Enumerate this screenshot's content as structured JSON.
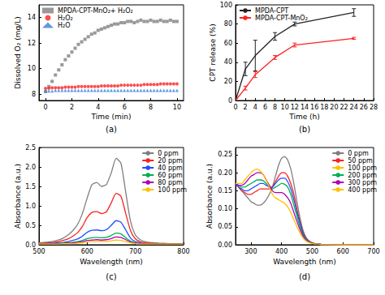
{
  "chart_data": [
    {
      "type": "scatter",
      "title": "(a)",
      "x_label": "Time (min)",
      "y_label": "Dissolved O₂ (mg/L)",
      "x": [
        0,
        0.25,
        0.5,
        0.75,
        1,
        1.25,
        1.5,
        1.75,
        2,
        2.25,
        2.5,
        2.75,
        3,
        3.25,
        3.5,
        3.75,
        4,
        4.25,
        4.5,
        4.75,
        5,
        5.25,
        5.5,
        5.75,
        6,
        6.25,
        6.5,
        6.75,
        7,
        7.25,
        7.5,
        7.75,
        8,
        8.25,
        8.5,
        8.75,
        9,
        9.25,
        9.5,
        9.75,
        10
      ],
      "series": [
        {
          "name": "MPDA-CPT-MnO₂+ H₂O₂",
          "color": "#7f7f7f",
          "marker": "square",
          "values": [
            8.2,
            8.6,
            9.0,
            9.5,
            9.9,
            10.3,
            10.7,
            11.0,
            11.3,
            11.6,
            11.9,
            12.1,
            12.3,
            12.5,
            12.7,
            12.8,
            13.0,
            13.1,
            13.2,
            13.3,
            13.4,
            13.5,
            13.5,
            13.6,
            13.6,
            13.7,
            13.7,
            13.6,
            13.7,
            13.8,
            13.7,
            13.7,
            13.8,
            13.7,
            13.7,
            13.8,
            13.7,
            13.7,
            13.8,
            13.7,
            13.7
          ]
        },
        {
          "name": "H₂O₂",
          "color": "#ff2020",
          "marker": "circle",
          "values": [
            8.45,
            8.45,
            8.5,
            8.5,
            8.5,
            8.5,
            8.55,
            8.55,
            8.55,
            8.55,
            8.6,
            8.6,
            8.6,
            8.6,
            8.6,
            8.6,
            8.6,
            8.65,
            8.65,
            8.65,
            8.65,
            8.65,
            8.65,
            8.7,
            8.7,
            8.7,
            8.7,
            8.7,
            8.7,
            8.7,
            8.75,
            8.75,
            8.75,
            8.75,
            8.75,
            8.8,
            8.8,
            8.8,
            8.8,
            8.8,
            8.8
          ]
        },
        {
          "name": "H₂O",
          "color": "#3a7fe0",
          "marker": "triangle",
          "values": [
            8.25,
            8.25,
            8.25,
            8.3,
            8.3,
            8.3,
            8.3,
            8.3,
            8.3,
            8.3,
            8.3,
            8.3,
            8.3,
            8.3,
            8.3,
            8.3,
            8.3,
            8.3,
            8.3,
            8.3,
            8.3,
            8.3,
            8.3,
            8.3,
            8.3,
            8.3,
            8.3,
            8.3,
            8.3,
            8.3,
            8.3,
            8.3,
            8.3,
            8.3,
            8.3,
            8.3,
            8.3,
            8.3,
            8.3,
            8.3,
            8.3
          ]
        }
      ],
      "xlim": [
        -0.5,
        10.5
      ],
      "xticks": [
        0,
        2,
        4,
        6,
        8,
        10
      ],
      "ylim": [
        7.5,
        15
      ],
      "yticks": [
        8,
        10,
        12,
        14
      ],
      "grid": false,
      "legend": "upper left"
    },
    {
      "type": "line",
      "title": "(b)",
      "x_label": "Time (h)",
      "y_label": "CPT release (%)",
      "x": [
        0,
        2,
        4,
        8,
        12,
        24
      ],
      "series": [
        {
          "name": "MPDA-CPT",
          "color": "#222222",
          "values": [
            0,
            33,
            47,
            67,
            80,
            92
          ],
          "errors": [
            0,
            7,
            16,
            4,
            2,
            4
          ]
        },
        {
          "name": "MPDA-CPT-MnO₂",
          "color": "#ff2020",
          "values": [
            0,
            13,
            27,
            45,
            58,
            65
          ],
          "errors": [
            0,
            2,
            3,
            2,
            2,
            1
          ]
        }
      ],
      "xlim": [
        0,
        28
      ],
      "xticks": [
        0,
        2,
        4,
        6,
        8,
        10,
        12,
        14,
        16,
        18,
        20,
        22,
        24,
        26,
        28
      ],
      "ylim": [
        0,
        100
      ],
      "yticks": [
        0,
        20,
        40,
        60,
        80,
        100
      ],
      "grid": false,
      "legend": "upper left"
    },
    {
      "type": "line",
      "title": "(c)",
      "x_label": "Wavelength (nm)",
      "y_label": "Absorbance (a.u.)",
      "x": [
        500,
        510,
        520,
        530,
        540,
        550,
        560,
        570,
        580,
        590,
        600,
        610,
        620,
        630,
        640,
        650,
        660,
        670,
        680,
        690,
        700,
        710,
        720,
        730,
        740,
        750,
        760,
        770,
        780,
        790,
        800
      ],
      "series": [
        {
          "name": "0 ppm",
          "color": "#7f7f7f",
          "values": [
            0.05,
            0.06,
            0.07,
            0.09,
            0.12,
            0.17,
            0.25,
            0.36,
            0.52,
            0.8,
            1.2,
            1.55,
            1.6,
            1.5,
            1.55,
            1.85,
            2.22,
            2.1,
            1.35,
            0.6,
            0.25,
            0.13,
            0.08,
            0.06,
            0.05,
            0.04,
            0.04,
            0.03,
            0.03,
            0.03,
            0.03
          ]
        },
        {
          "name": "20 ppm",
          "color": "#ff2020",
          "values": [
            0.04,
            0.04,
            0.05,
            0.06,
            0.08,
            0.11,
            0.15,
            0.22,
            0.31,
            0.47,
            0.7,
            0.83,
            0.85,
            0.8,
            0.85,
            1.08,
            1.32,
            1.25,
            0.8,
            0.36,
            0.15,
            0.08,
            0.05,
            0.04,
            0.03,
            0.03,
            0.03,
            0.02,
            0.02,
            0.02,
            0.02
          ]
        },
        {
          "name": "40 ppm",
          "color": "#1f4fff",
          "values": [
            0.03,
            0.03,
            0.04,
            0.04,
            0.05,
            0.06,
            0.08,
            0.11,
            0.15,
            0.22,
            0.32,
            0.37,
            0.38,
            0.36,
            0.39,
            0.5,
            0.62,
            0.58,
            0.38,
            0.17,
            0.08,
            0.05,
            0.03,
            0.03,
            0.02,
            0.02,
            0.02,
            0.02,
            0.02,
            0.02,
            0.02
          ]
        },
        {
          "name": "60 ppm",
          "color": "#00b050",
          "values": [
            0.03,
            0.03,
            0.03,
            0.03,
            0.04,
            0.04,
            0.05,
            0.06,
            0.08,
            0.11,
            0.16,
            0.18,
            0.19,
            0.18,
            0.19,
            0.24,
            0.3,
            0.28,
            0.18,
            0.09,
            0.05,
            0.03,
            0.02,
            0.02,
            0.02,
            0.02,
            0.02,
            0.02,
            0.02,
            0.02,
            0.02
          ]
        },
        {
          "name": "80 ppm",
          "color": "#b000b0",
          "values": [
            0.02,
            0.02,
            0.02,
            0.03,
            0.03,
            0.03,
            0.04,
            0.05,
            0.06,
            0.08,
            0.11,
            0.12,
            0.13,
            0.12,
            0.13,
            0.16,
            0.2,
            0.19,
            0.13,
            0.07,
            0.04,
            0.03,
            0.02,
            0.02,
            0.02,
            0.02,
            0.02,
            0.02,
            0.02,
            0.02,
            0.02
          ]
        },
        {
          "name": "100 ppm",
          "color": "#ffc000",
          "values": [
            0.02,
            0.02,
            0.02,
            0.02,
            0.02,
            0.03,
            0.03,
            0.03,
            0.04,
            0.05,
            0.07,
            0.08,
            0.08,
            0.08,
            0.08,
            0.1,
            0.12,
            0.11,
            0.08,
            0.05,
            0.03,
            0.02,
            0.02,
            0.02,
            0.02,
            0.02,
            0.02,
            0.02,
            0.02,
            0.02,
            0.02
          ]
        }
      ],
      "xlim": [
        500,
        800
      ],
      "xticks": [
        500,
        600,
        700,
        800
      ],
      "ylim": [
        0,
        2.5
      ],
      "yticks": [
        {
          "value": 0,
          "label": "0.0"
        },
        0.5,
        {
          "value": 1,
          "label": "1.0"
        },
        1.5,
        {
          "value": 2,
          "label": "2.0"
        },
        2.5
      ],
      "grid": false,
      "legend": "upper right"
    },
    {
      "type": "line",
      "title": "(d)",
      "x_label": "Wavelength (nm)",
      "y_label": "Absorbance (a.u.)",
      "x": [
        250,
        260,
        270,
        280,
        290,
        300,
        310,
        320,
        330,
        340,
        350,
        360,
        370,
        380,
        390,
        400,
        410,
        420,
        430,
        440,
        450,
        460,
        470,
        480,
        490,
        500,
        510,
        520,
        530,
        540,
        550,
        600,
        650,
        700
      ],
      "series": [
        {
          "name": "0 ppm",
          "color": "#7f7f7f",
          "values": [
            0.17,
            0.16,
            0.15,
            0.14,
            0.13,
            0.12,
            0.115,
            0.11,
            0.11,
            0.115,
            0.125,
            0.14,
            0.16,
            0.19,
            0.22,
            0.24,
            0.245,
            0.235,
            0.21,
            0.17,
            0.12,
            0.075,
            0.04,
            0.02,
            0.01,
            0.005,
            0.003,
            0.002,
            0.001,
            0.001,
            0.001,
            0,
            0,
            0
          ]
        },
        {
          "name": "50 ppm",
          "color": "#ff2020",
          "values": [
            0.17,
            0.16,
            0.15,
            0.145,
            0.14,
            0.14,
            0.145,
            0.15,
            0.155,
            0.155,
            0.155,
            0.155,
            0.16,
            0.175,
            0.19,
            0.2,
            0.2,
            0.19,
            0.17,
            0.14,
            0.1,
            0.065,
            0.035,
            0.018,
            0.01,
            0.005,
            0.003,
            0.002,
            0.001,
            0.001,
            0.001,
            0,
            0,
            0
          ]
        },
        {
          "name": "100 ppm",
          "color": "#1f4fff",
          "values": [
            0.17,
            0.16,
            0.155,
            0.15,
            0.15,
            0.155,
            0.16,
            0.165,
            0.17,
            0.17,
            0.165,
            0.16,
            0.16,
            0.17,
            0.18,
            0.185,
            0.185,
            0.175,
            0.155,
            0.125,
            0.09,
            0.06,
            0.032,
            0.016,
            0.009,
            0.005,
            0.003,
            0.002,
            0.001,
            0.001,
            0.001,
            0,
            0,
            0
          ]
        },
        {
          "name": "200 ppm",
          "color": "#00b050",
          "values": [
            0.17,
            0.165,
            0.16,
            0.16,
            0.165,
            0.17,
            0.175,
            0.18,
            0.18,
            0.178,
            0.17,
            0.16,
            0.155,
            0.16,
            0.165,
            0.17,
            0.168,
            0.16,
            0.14,
            0.11,
            0.08,
            0.05,
            0.028,
            0.014,
            0.008,
            0.004,
            0.003,
            0.002,
            0.001,
            0.001,
            0.001,
            0,
            0,
            0
          ]
        },
        {
          "name": "300 ppm",
          "color": "#b000b0",
          "values": [
            0.17,
            0.165,
            0.165,
            0.17,
            0.18,
            0.19,
            0.195,
            0.2,
            0.2,
            0.195,
            0.18,
            0.165,
            0.15,
            0.145,
            0.145,
            0.145,
            0.14,
            0.13,
            0.115,
            0.09,
            0.065,
            0.042,
            0.024,
            0.012,
            0.007,
            0.004,
            0.003,
            0.002,
            0.001,
            0.001,
            0.001,
            0,
            0,
            0
          ]
        },
        {
          "name": "400 ppm",
          "color": "#ffc000",
          "values": [
            0.17,
            0.17,
            0.17,
            0.18,
            0.19,
            0.2,
            0.207,
            0.21,
            0.205,
            0.195,
            0.18,
            0.16,
            0.14,
            0.13,
            0.125,
            0.12,
            0.115,
            0.105,
            0.09,
            0.07,
            0.05,
            0.033,
            0.019,
            0.01,
            0.006,
            0.003,
            0.002,
            0.002,
            0.001,
            0.001,
            0.001,
            0,
            0,
            0
          ]
        }
      ],
      "xlim": [
        250,
        700
      ],
      "xticks": [
        300,
        400,
        500,
        600,
        700
      ],
      "ylim": [
        0,
        0.27
      ],
      "yticks": [
        {
          "value": 0,
          "label": "0.00"
        },
        0.05,
        {
          "value": 0.1,
          "label": "0.10"
        },
        0.15,
        {
          "value": 0.2,
          "label": "0.20"
        },
        0.25
      ],
      "grid": false,
      "legend": "upper right"
    }
  ]
}
